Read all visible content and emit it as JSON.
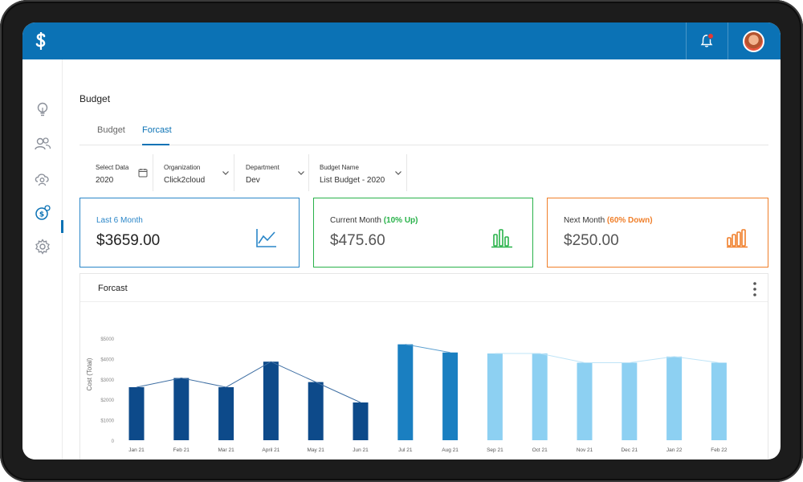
{
  "page": {
    "title": "Budget"
  },
  "tabs": [
    {
      "label": "Budget",
      "active": false
    },
    {
      "label": "Forcast",
      "active": true
    }
  ],
  "filters": [
    {
      "label": "Select Data",
      "value": "2020",
      "icon": "calendar-icon"
    },
    {
      "label": "Organization",
      "value": "Click2cloud",
      "icon": "chevron-down-icon"
    },
    {
      "label": "Department",
      "value": "Dev",
      "icon": "chevron-down-icon"
    },
    {
      "label": "Budget Name",
      "value": "List Budget - 2020",
      "icon": "chevron-down-icon"
    }
  ],
  "cards": [
    {
      "label": "Last 6 Month",
      "badge": "",
      "value": "$3659.00",
      "color": "#2a86c8",
      "icon": "trend-line-icon"
    },
    {
      "label": "Current Month ",
      "badge": "(10% Up)",
      "value": "$475.60",
      "color": "#29b24a",
      "icon": "bar-chart-icon"
    },
    {
      "label": "Next Month ",
      "badge": "(60% Down)",
      "value": "$250.00",
      "color": "#f07f2a",
      "icon": "bar-chart-icon"
    }
  ],
  "colors": {
    "brand": "#0b72b5",
    "past": "#0d4a8a",
    "current": "#1a7fc1",
    "forecast": "#8dd0f2"
  },
  "chart_data": {
    "type": "bar",
    "title": "Forcast",
    "ylabel": "Cost (Total)",
    "xlabel": "",
    "ylim": [
      0,
      5000
    ],
    "yticks": [
      "0",
      "$1000",
      "$2000",
      "$3000",
      "$4000",
      "$5000"
    ],
    "categories": [
      "Jan 21",
      "Feb 21",
      "Mar 21",
      "April 21",
      "May 21",
      "Jun 21",
      "Jul 21",
      "Aug 21",
      "Sep 21",
      "Oct 21",
      "Nov 21",
      "Dec 21",
      "Jan 22",
      "Feb 22"
    ],
    "values": [
      2600,
      3050,
      2600,
      3850,
      2850,
      1850,
      4700,
      4300,
      4250,
      4250,
      3800,
      3800,
      4100,
      3800
    ],
    "segments": [
      {
        "from": 0,
        "to": 5,
        "color": "#0d4a8a",
        "line": "#3f6fa3"
      },
      {
        "from": 6,
        "to": 7,
        "color": "#1a7fc1",
        "line": "#5b9fd0"
      },
      {
        "from": 8,
        "to": 13,
        "color": "#8dd0f2",
        "line": "#bfe4f7"
      }
    ],
    "grid": false,
    "legend": "none"
  }
}
